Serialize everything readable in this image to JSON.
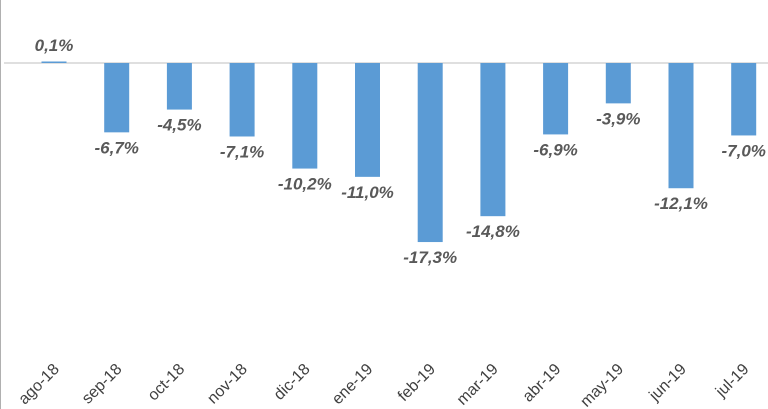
{
  "chart_data": {
    "type": "bar",
    "categories": [
      "ago-18",
      "sep-18",
      "oct-18",
      "nov-18",
      "dic-18",
      "ene-19",
      "feb-19",
      "mar-19",
      "abr-19",
      "may-19",
      "jun-19",
      "jul-19"
    ],
    "values": [
      0.1,
      -6.7,
      -4.5,
      -7.1,
      -10.2,
      -11.0,
      -17.3,
      -14.8,
      -6.9,
      -3.9,
      -12.1,
      -7.0
    ],
    "data_labels": [
      "0,1%",
      "-6,7%",
      "-4,5%",
      "-7,1%",
      "-10,2%",
      "-11,0%",
      "-17,3%",
      "-14,8%",
      "-6,9%",
      "-3,9%",
      "-12,1%",
      "-7,0%"
    ],
    "title": "",
    "xlabel": "",
    "ylabel": "",
    "ylim": [
      -17.3,
      0.1
    ],
    "bar_color": "#5b9bd5",
    "axis_color": "#bfbfbf",
    "grid": false,
    "legend": false
  }
}
